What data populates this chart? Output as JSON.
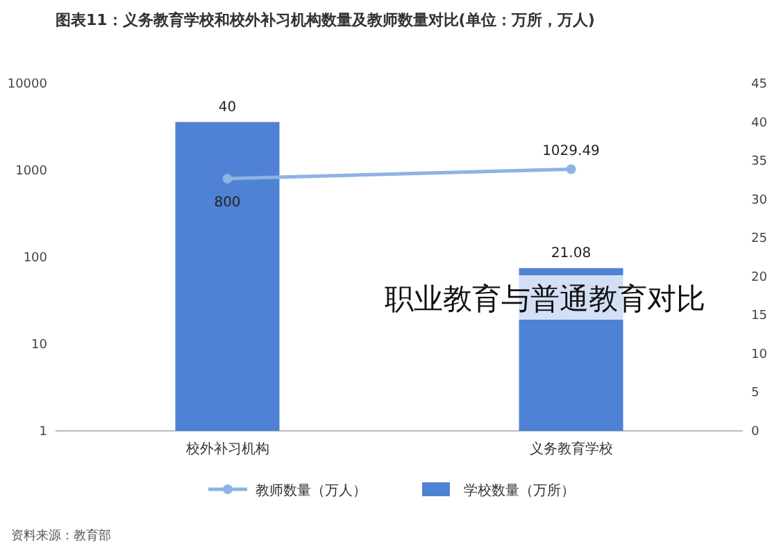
{
  "chart_data": {
    "type": "bar",
    "title": "图表11：义务教育学校和校外补习机构数量及教师数量对比(单位：万所，万人)",
    "categories": [
      "校外补习机构",
      "义务教育学校"
    ],
    "series": [
      {
        "name": "教师数量（万人）",
        "type": "line",
        "color": "#8db3e2",
        "values": [
          800,
          1029.49
        ]
      },
      {
        "name": "学校数量（万所）",
        "axis": "y2",
        "color": "#4f81d4",
        "values": [
          40,
          21.08
        ]
      }
    ],
    "log": "y",
    "ylim": [
      1,
      10000
    ],
    "yticks": [
      1,
      10,
      100,
      1000,
      10000
    ],
    "y2lim": [
      0,
      45
    ],
    "y2ticks": [
      0,
      5,
      10,
      15,
      20,
      25,
      30,
      35,
      40,
      45
    ],
    "data_labels": true,
    "legend": "bottom",
    "marker": "circle",
    "grid": false,
    "annotations": [
      "资料来源：教育部",
      "职业教育与普通教育对比"
    ]
  }
}
